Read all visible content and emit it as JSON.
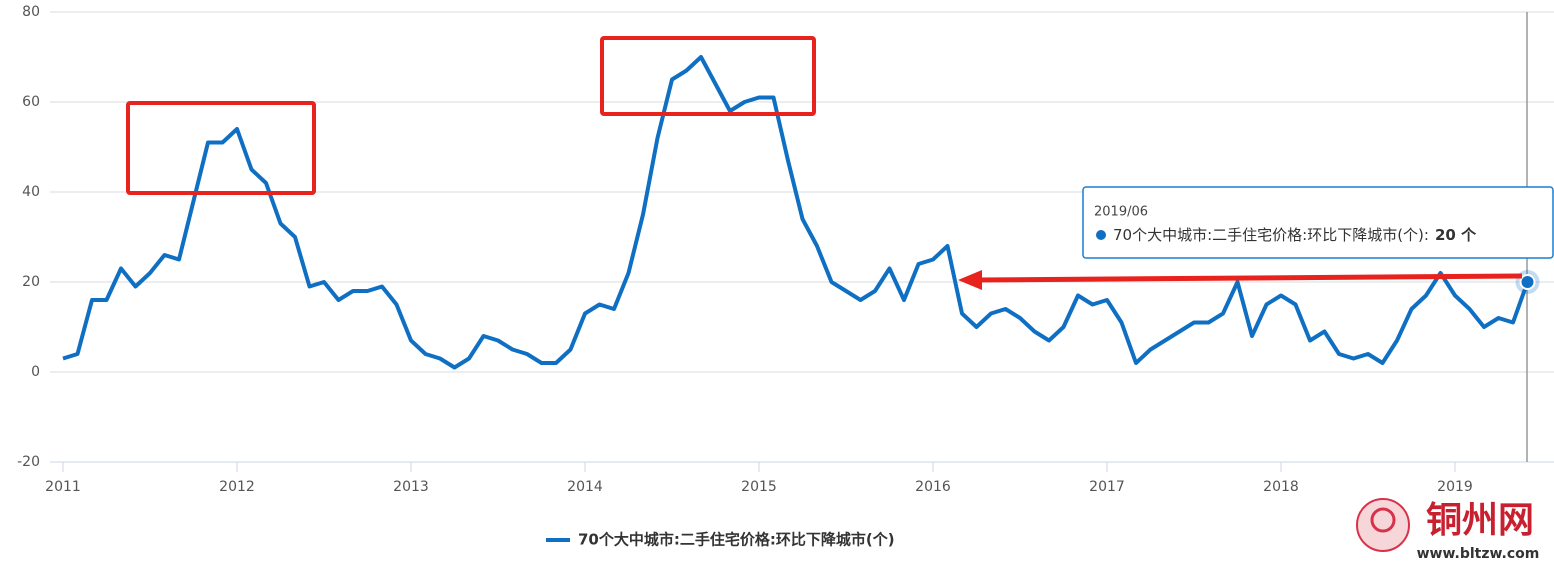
{
  "chart_data": {
    "type": "line",
    "x": [
      "2011/01",
      "2011/02",
      "2011/03",
      "2011/04",
      "2011/05",
      "2011/06",
      "2011/07",
      "2011/08",
      "2011/09",
      "2011/10",
      "2011/11",
      "2011/12",
      "2012/01",
      "2012/02",
      "2012/03",
      "2012/04",
      "2012/05",
      "2012/06",
      "2012/07",
      "2012/08",
      "2012/09",
      "2012/10",
      "2012/11",
      "2012/12",
      "2013/01",
      "2013/02",
      "2013/03",
      "2013/04",
      "2013/05",
      "2013/06",
      "2013/07",
      "2013/08",
      "2013/09",
      "2013/10",
      "2013/11",
      "2013/12",
      "2014/01",
      "2014/02",
      "2014/03",
      "2014/04",
      "2014/05",
      "2014/06",
      "2014/07",
      "2014/08",
      "2014/09",
      "2014/10",
      "2014/11",
      "2014/12",
      "2015/01",
      "2015/02",
      "2015/03",
      "2015/04",
      "2015/05",
      "2015/06",
      "2015/07",
      "2015/08",
      "2015/09",
      "2015/10",
      "2015/11",
      "2015/12",
      "2016/01",
      "2016/02",
      "2016/03",
      "2016/04",
      "2016/05",
      "2016/06",
      "2016/07",
      "2016/08",
      "2016/09",
      "2016/10",
      "2016/11",
      "2016/12",
      "2017/01",
      "2017/02",
      "2017/03",
      "2017/04",
      "2017/05",
      "2017/06",
      "2017/07",
      "2017/08",
      "2017/09",
      "2017/10",
      "2017/11",
      "2017/12",
      "2018/01",
      "2018/02",
      "2018/03",
      "2018/04",
      "2018/05",
      "2018/06",
      "2018/07",
      "2018/08",
      "2018/09",
      "2018/10",
      "2018/11",
      "2018/12",
      "2019/01",
      "2019/02",
      "2019/03",
      "2019/04",
      "2019/05",
      "2019/06"
    ],
    "series": [
      {
        "name": "70个大中城市:二手住宅价格:环比下降城市(个)",
        "color": "#0f6fc3",
        "values": [
          3,
          4,
          16,
          16,
          23,
          19,
          22,
          26,
          25,
          38,
          51,
          51,
          54,
          45,
          42,
          33,
          30,
          19,
          20,
          16,
          18,
          18,
          19,
          15,
          7,
          4,
          3,
          1,
          3,
          8,
          7,
          5,
          4,
          2,
          2,
          5,
          13,
          15,
          14,
          22,
          35,
          52,
          65,
          67,
          70,
          64,
          58,
          60,
          61,
          61,
          47,
          34,
          28,
          20,
          18,
          16,
          18,
          23,
          16,
          24,
          25,
          28,
          13,
          10,
          13,
          14,
          12,
          9,
          7,
          10,
          17,
          15,
          16,
          11,
          2,
          5,
          7,
          9,
          11,
          11,
          13,
          20,
          8,
          15,
          17,
          15,
          7,
          9,
          4,
          3,
          4,
          2,
          7,
          14,
          17,
          22,
          17,
          14,
          10,
          12,
          11,
          20
        ]
      }
    ],
    "ylim": [
      -20,
      80
    ],
    "yticks": [
      -20,
      0,
      20,
      40,
      60,
      80
    ],
    "xticks": [
      {
        "value": "2011/01",
        "label": "2011"
      },
      {
        "value": "2012/01",
        "label": "2012"
      },
      {
        "value": "2013/01",
        "label": "2013"
      },
      {
        "value": "2014/01",
        "label": "2014"
      },
      {
        "value": "2015/01",
        "label": "2015"
      },
      {
        "value": "2016/01",
        "label": "2016"
      },
      {
        "value": "2017/01",
        "label": "2017"
      },
      {
        "value": "2018/01",
        "label": "2018"
      },
      {
        "value": "2019/01",
        "label": "2019"
      }
    ],
    "grid": true,
    "tooltip": {
      "value_label": "20 个"
    },
    "watermark": {
      "title": "铜州网",
      "url": "www.bltzw.com"
    }
  }
}
